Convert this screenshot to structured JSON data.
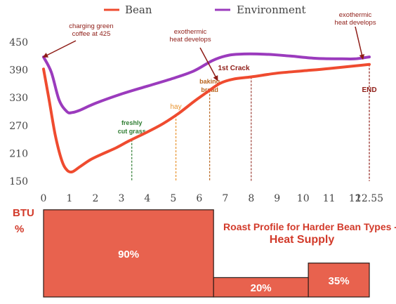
{
  "chart_data": [
    {
      "type": "line",
      "legend": {
        "placement": "top-center",
        "entries": [
          {
            "name": "Bean",
            "color": "#ef4b2f"
          },
          {
            "name": "Environment",
            "color": "#9b3bbd"
          }
        ]
      },
      "xlim": [
        0,
        12.55
      ],
      "ylim": [
        150,
        450
      ],
      "x_ticks": [
        {
          "value": 0,
          "label": "0"
        },
        {
          "value": 1,
          "label": "1"
        },
        {
          "value": 2,
          "label": "2"
        },
        {
          "value": 3,
          "label": "3"
        },
        {
          "value": 4,
          "label": "4"
        },
        {
          "value": 5,
          "label": "5"
        },
        {
          "value": 6,
          "label": "6"
        },
        {
          "value": 7,
          "label": "7"
        },
        {
          "value": 8,
          "label": "8"
        },
        {
          "value": 9,
          "label": "9"
        },
        {
          "value": 10,
          "label": "10"
        },
        {
          "value": 11,
          "label": "11"
        },
        {
          "value": 12,
          "label": "12"
        },
        {
          "value": 12.55,
          "label": "12.55"
        }
      ],
      "y_ticks": [
        {
          "value": 150,
          "label": "150"
        },
        {
          "value": 210,
          "label": "210"
        },
        {
          "value": 270,
          "label": "270"
        },
        {
          "value": 330,
          "label": "330"
        },
        {
          "value": 390,
          "label": "390"
        },
        {
          "value": 450,
          "label": "450"
        }
      ],
      "grid": false,
      "series": [
        {
          "name": "Bean",
          "color": "#ef4b2f",
          "points": [
            [
              0,
              392
            ],
            [
              0.2,
              330
            ],
            [
              0.45,
              250
            ],
            [
              0.7,
              195
            ],
            [
              0.9,
              174
            ],
            [
              1.1,
              170
            ],
            [
              1.4,
              181
            ],
            [
              1.8,
              196
            ],
            [
              2.2,
              207
            ],
            [
              2.8,
              222
            ],
            [
              3.3,
              237
            ],
            [
              4,
              256
            ],
            [
              4.6,
              274
            ],
            [
              5.2,
              296
            ],
            [
              5.8,
              322
            ],
            [
              6.3,
              342
            ],
            [
              6.8,
              361
            ],
            [
              7.3,
              370
            ],
            [
              8,
              375
            ],
            [
              9,
              383
            ],
            [
              10,
              388
            ],
            [
              11,
              393
            ],
            [
              12.55,
              402
            ]
          ]
        },
        {
          "name": "Environment",
          "color": "#9b3bbd",
          "points": [
            [
              0,
              418
            ],
            [
              0.3,
              385
            ],
            [
              0.6,
              325
            ],
            [
              0.9,
              300
            ],
            [
              1.1,
              298
            ],
            [
              1.4,
              303
            ],
            [
              2,
              318
            ],
            [
              3,
              338
            ],
            [
              4,
              355
            ],
            [
              5,
              372
            ],
            [
              5.8,
              388
            ],
            [
              6.5,
              410
            ],
            [
              7,
              420
            ],
            [
              7.5,
              424
            ],
            [
              8.5,
              424
            ],
            [
              9.5,
              420
            ],
            [
              10.5,
              415
            ],
            [
              11.5,
              414
            ],
            [
              12,
              414
            ],
            [
              12.55,
              418
            ]
          ]
        }
      ],
      "markers": [
        {
          "x": 3.4,
          "label": "freshly\ncut grass",
          "color": "#2f7d32",
          "bold": true
        },
        {
          "x": 5.1,
          "label": "hay",
          "color": "#e8932e",
          "bold": false
        },
        {
          "x": 6.4,
          "label": "baking\nbread",
          "color": "#b8651f",
          "bold": true
        },
        {
          "x": 8,
          "label": "",
          "color": "#9a3b32",
          "bold": false
        },
        {
          "x": 12.55,
          "label": "END",
          "color": "#8e1c16",
          "bold": true
        }
      ],
      "annotations": [
        {
          "text": "charging green\ncoffee at 425",
          "color": "#8e1c16",
          "points_to": [
            0,
            418
          ]
        },
        {
          "text": "exothermic\nheat develops",
          "color": "#8e1c16",
          "points_to": [
            6.7,
            368
          ]
        },
        {
          "text": "1st Crack",
          "color": "#8e1c16",
          "bold": true,
          "points_to": null
        },
        {
          "text": "exothermic\nheat develops",
          "color": "#8e1c16",
          "points_to": [
            12.3,
            414
          ]
        }
      ]
    },
    {
      "type": "bar",
      "ylabel": "BTU\n%",
      "title": "Roast Profile for Harder Bean Types -",
      "subtitle": "Heat Supply",
      "color": "#e8624e",
      "bars": [
        {
          "x_start": 0,
          "x_end": 6.55,
          "value": 90,
          "label": "90%"
        },
        {
          "x_start": 6.55,
          "x_end": 10.2,
          "value": 20,
          "label": "20%"
        },
        {
          "x_start": 10.2,
          "x_end": 12.55,
          "value": 35,
          "label": "35%"
        }
      ]
    }
  ]
}
